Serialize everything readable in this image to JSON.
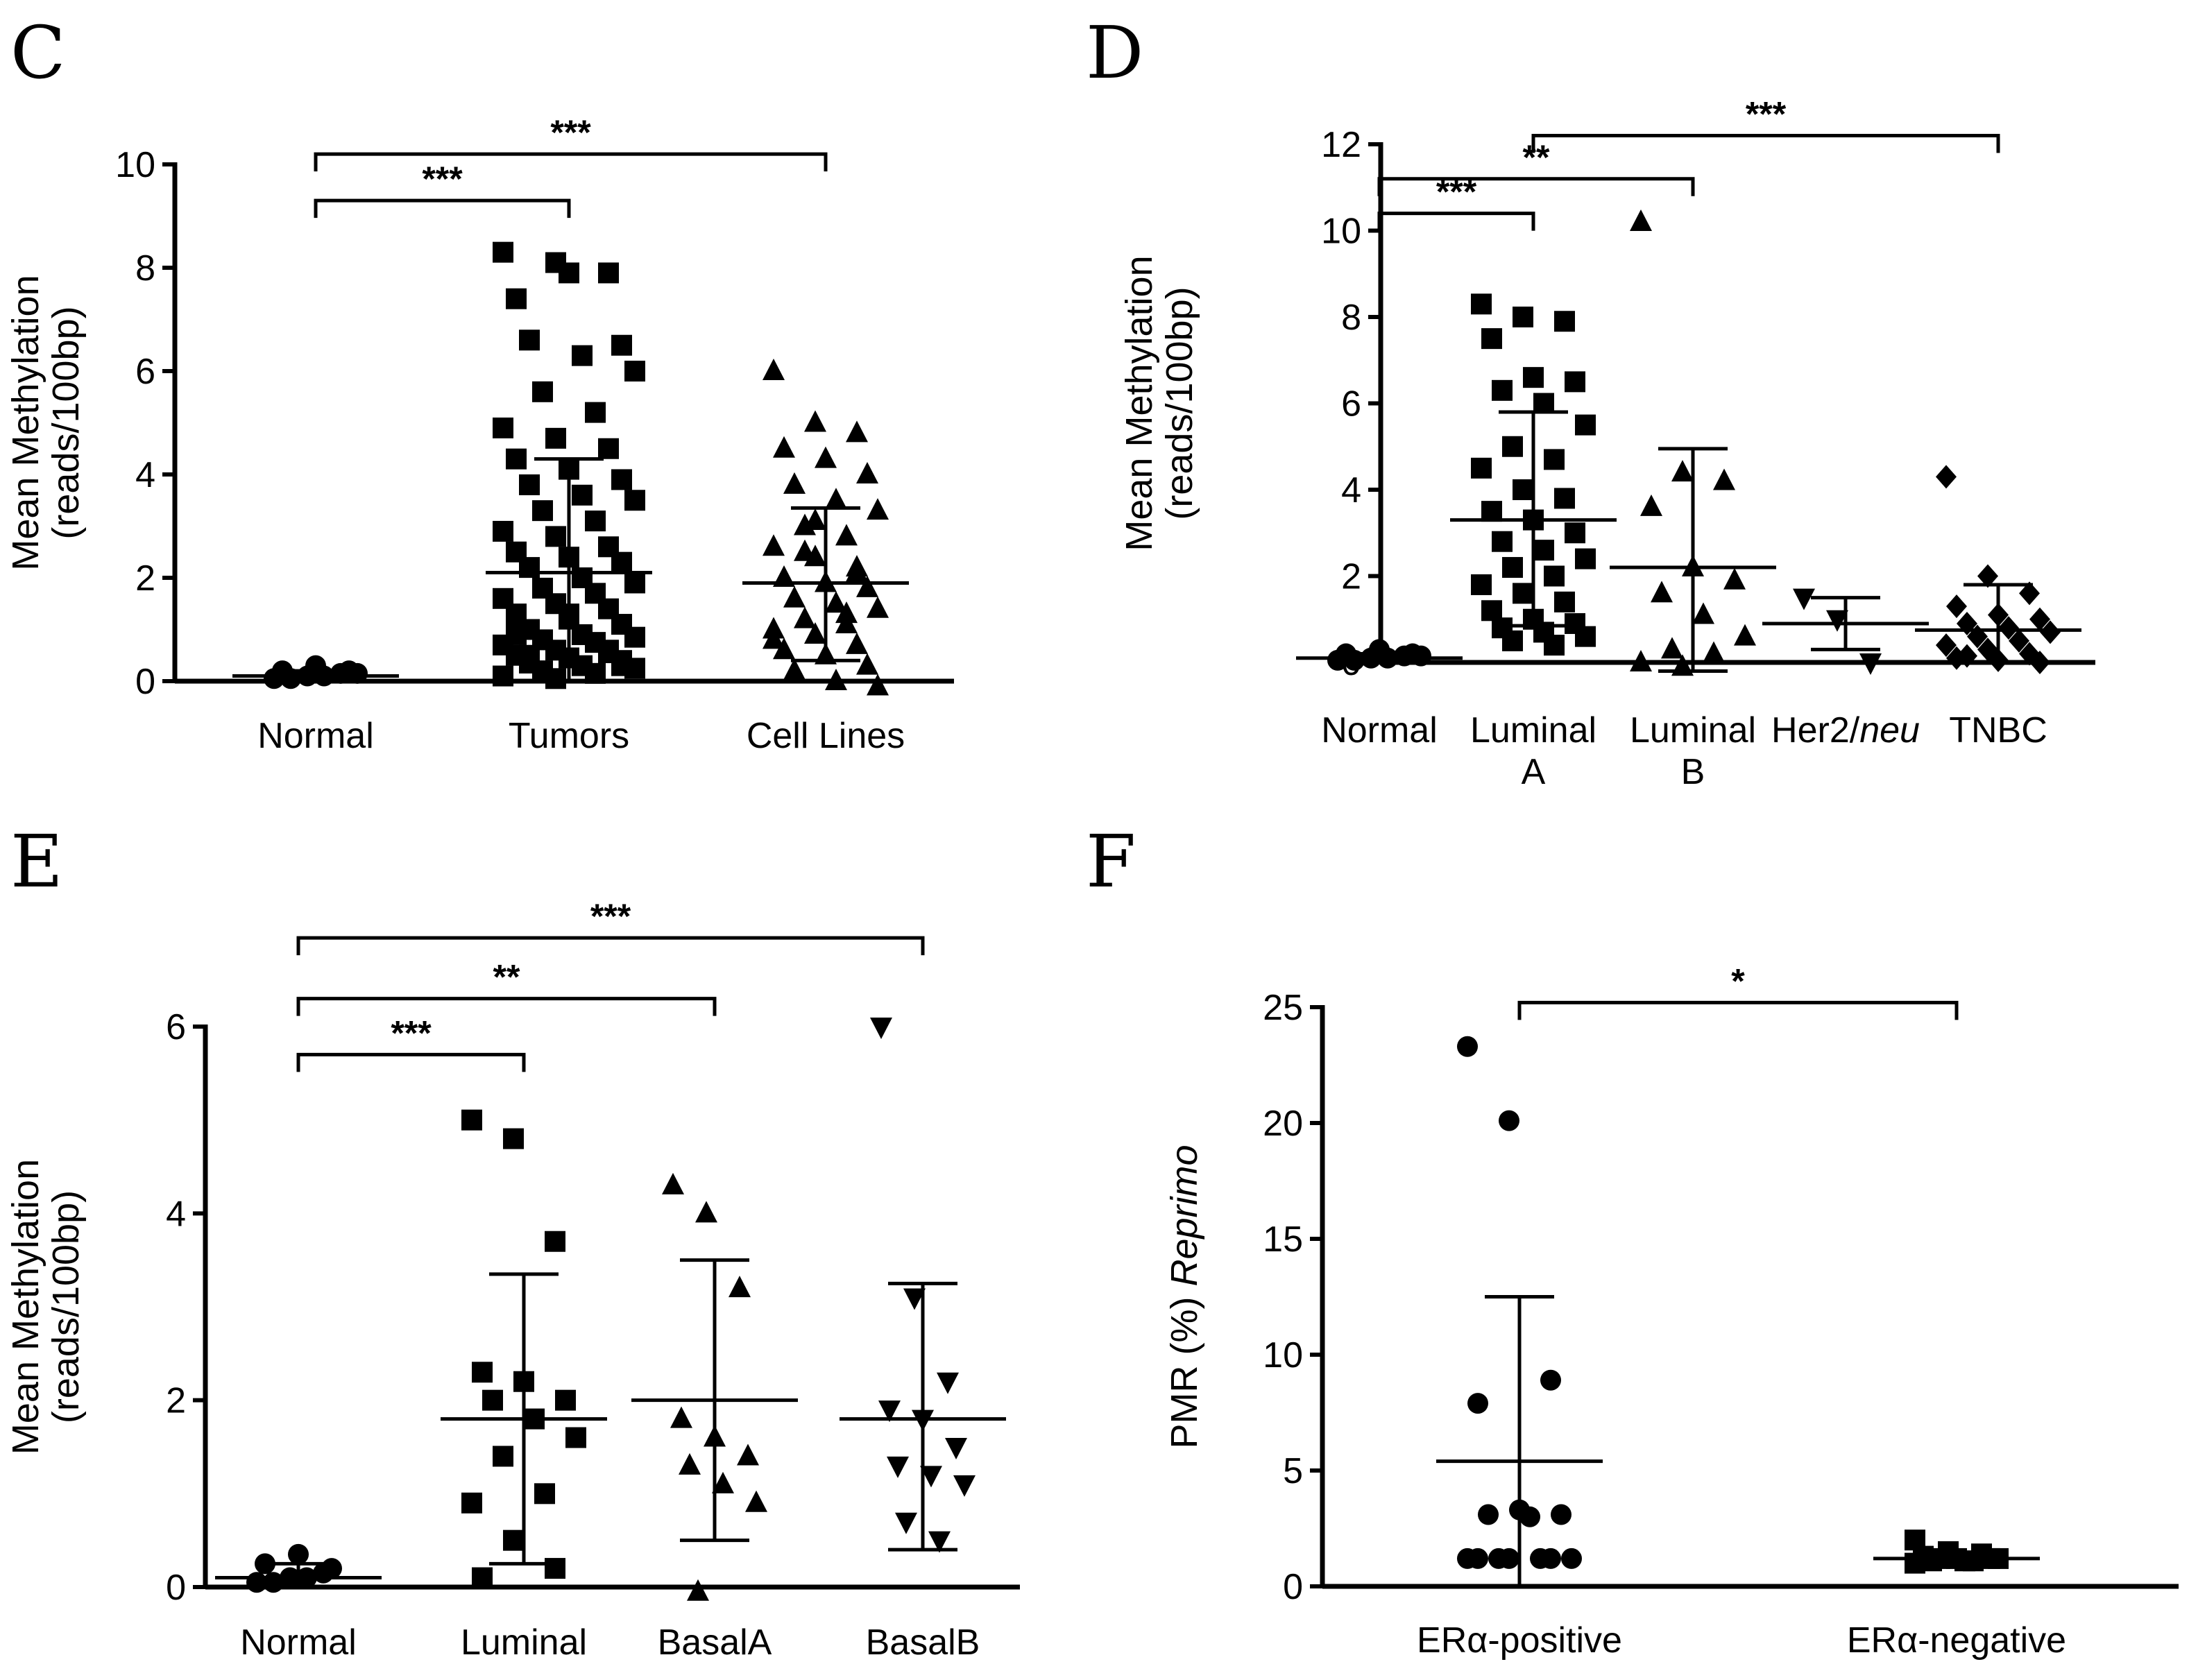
{
  "chart_data": [
    {
      "panel": "C",
      "type": "scatter",
      "ylabel_lines": [
        "Mean Methylation",
        "(reads/100bp)"
      ],
      "ylim": [
        0,
        10
      ],
      "yticks": [
        0,
        2,
        4,
        6,
        8,
        10
      ],
      "categories": [
        {
          "label_lines": [
            "Normal"
          ],
          "marker": "circle",
          "values": [
            0.05,
            0.1,
            0.15,
            0.2,
            0.3,
            0.2,
            0.05,
            0.1,
            0.15
          ],
          "mean": 0.1,
          "err_low": 0.0,
          "err_high": 0.2
        },
        {
          "label_lines": [
            "Tumors"
          ],
          "marker": "square",
          "values": [
            8.3,
            8.1,
            7.9,
            7.4,
            7.9,
            6.5,
            6.6,
            6.3,
            6.0,
            5.6,
            5.2,
            4.9,
            4.7,
            4.5,
            4.3,
            4.1,
            3.9,
            3.8,
            3.6,
            3.5,
            3.3,
            3.1,
            2.9,
            2.8,
            2.6,
            2.5,
            2.4,
            2.3,
            2.2,
            2.0,
            1.9,
            1.8,
            1.7,
            1.6,
            1.5,
            1.4,
            1.3,
            1.2,
            1.1,
            1.0,
            0.9,
            0.85,
            0.8,
            0.75,
            0.7,
            0.6,
            0.55,
            0.5,
            0.45,
            0.4,
            0.35,
            0.3,
            0.25,
            0.2,
            0.15,
            0.1,
            0.05,
            0.6,
            0.9,
            1.3,
            0.3,
            0.5
          ],
          "mean": 2.1,
          "err_low": 0.0,
          "err_high": 4.3
        },
        {
          "label_lines": [
            "Cell Lines"
          ],
          "marker": "triangle",
          "values": [
            6.0,
            5.0,
            4.8,
            4.5,
            4.3,
            4.0,
            3.8,
            3.5,
            3.3,
            3.0,
            2.8,
            2.6,
            2.4,
            2.2,
            2.0,
            1.9,
            1.8,
            1.6,
            1.5,
            1.4,
            1.2,
            1.1,
            1.0,
            0.9,
            0.7,
            0.6,
            0.5,
            0.3,
            0.2,
            0.0,
            -0.1,
            2.5,
            1.3,
            0.8,
            3.1,
            2.1
          ],
          "mean": 1.9,
          "err_low": 0.4,
          "err_high": 3.35
        }
      ],
      "comparisons": [
        {
          "from": 0,
          "to": 1,
          "label": "***",
          "y": 9.3
        },
        {
          "from": 0,
          "to": 2,
          "label": "***",
          "y": 10.2
        }
      ]
    },
    {
      "panel": "D",
      "type": "scatter",
      "ylabel_lines": [
        "Mean Methylation",
        "(reads/100bp)"
      ],
      "ylim": [
        0,
        12
      ],
      "yticks": [
        0,
        2,
        4,
        6,
        8,
        10,
        12
      ],
      "categories": [
        {
          "label_lines": [
            "Normal"
          ],
          "marker": "circle",
          "values": [
            0.05,
            0.1,
            0.15,
            0.2,
            0.3,
            0.2,
            0.05,
            0.1,
            0.15
          ],
          "mean": 0.1,
          "err_low": 0.0,
          "err_high": 0.2
        },
        {
          "label_lines": [
            "Luminal",
            "A"
          ],
          "marker": "square",
          "values": [
            8.3,
            8.0,
            7.9,
            7.5,
            6.6,
            6.5,
            6.3,
            6.0,
            5.5,
            5.0,
            4.7,
            4.5,
            4.0,
            3.8,
            3.5,
            3.3,
            3.0,
            2.8,
            2.6,
            2.4,
            2.2,
            2.0,
            1.8,
            1.6,
            1.4,
            1.2,
            1.0,
            0.9,
            0.8,
            0.7,
            0.6,
            0.5,
            0.4
          ],
          "mean": 3.3,
          "err_low": 0.85,
          "err_high": 5.8
        },
        {
          "label_lines": [
            "Luminal",
            "B"
          ],
          "marker": "triangle",
          "values": [
            10.2,
            4.4,
            4.2,
            3.6,
            2.2,
            1.9,
            1.6,
            1.1,
            0.6,
            0.3,
            0.2,
            0.0,
            -0.1
          ],
          "mean": 2.2,
          "err_low": -0.6,
          "err_high": 4.95
        },
        {
          "label_lines": [
            "Her2/",
            "neu"
          ],
          "marker": "triangle-down",
          "values": [
            1.5,
            1.0,
            0.0
          ],
          "mean": 0.9,
          "err_low": 0.3,
          "err_high": 1.5
        },
        {
          "label_lines": [
            "TNBC"
          ],
          "marker": "diamond",
          "values": [
            4.3,
            2.0,
            1.6,
            1.3,
            1.1,
            1.0,
            0.9,
            0.8,
            0.7,
            0.6,
            0.5,
            0.4,
            0.3,
            0.2,
            0.1,
            0.05,
            0.0,
            0.15
          ],
          "mean": 0.75,
          "err_low": 0.0,
          "err_high": 1.8
        }
      ],
      "comparisons": [
        {
          "from": 0,
          "to": 1,
          "label": "***",
          "y": 10.4
        },
        {
          "from": 0,
          "to": 2,
          "label": "**",
          "y": 11.2
        },
        {
          "from": 1,
          "to": 4,
          "label": "***",
          "y": 12.2
        }
      ]
    },
    {
      "panel": "E",
      "type": "scatter",
      "ylabel_lines": [
        "Mean Methylation",
        "(reads/100bp)"
      ],
      "ylim": [
        0,
        6
      ],
      "yticks": [
        0,
        2,
        4,
        6
      ],
      "categories": [
        {
          "label_lines": [
            "Normal"
          ],
          "marker": "circle",
          "values": [
            0.05,
            0.1,
            0.15,
            0.25,
            0.35,
            0.2,
            0.05,
            0.1
          ],
          "mean": 0.1,
          "err_low": 0.0,
          "err_high": 0.25
        },
        {
          "label_lines": [
            "Luminal"
          ],
          "marker": "square",
          "values": [
            5.0,
            4.8,
            3.7,
            2.3,
            2.2,
            2.0,
            2.0,
            1.8,
            1.6,
            1.4,
            1.0,
            0.9,
            0.5,
            0.2,
            0.1
          ],
          "mean": 1.8,
          "err_low": 0.25,
          "err_high": 3.35
        },
        {
          "label_lines": [
            "BasalA"
          ],
          "marker": "triangle",
          "values": [
            4.3,
            4.0,
            3.2,
            1.8,
            1.6,
            1.4,
            1.3,
            1.1,
            0.9,
            -0.05
          ],
          "mean": 2.0,
          "err_low": 0.5,
          "err_high": 3.5
        },
        {
          "label_lines": [
            "BasalB"
          ],
          "marker": "triangle-down",
          "values": [
            6.0,
            3.1,
            2.2,
            1.9,
            1.8,
            1.5,
            1.3,
            1.2,
            1.1,
            0.7,
            0.5
          ],
          "mean": 1.8,
          "err_low": 0.4,
          "err_high": 3.25
        }
      ],
      "comparisons": [
        {
          "from": 0,
          "to": 1,
          "label": "***",
          "y": 5.7
        },
        {
          "from": 0,
          "to": 2,
          "label": "**",
          "y": 6.3
        },
        {
          "from": 0,
          "to": 3,
          "label": "***",
          "y": 6.95
        }
      ]
    },
    {
      "panel": "F",
      "type": "scatter",
      "ylabel_plain": "PMR (%) ",
      "ylabel_italic": "Reprimo",
      "ylim": [
        0,
        25
      ],
      "yticks": [
        0,
        5,
        10,
        15,
        20,
        25
      ],
      "categories": [
        {
          "label_prefix": "ER",
          "label_greek": "α",
          "label_suffix": "-positive",
          "marker": "circle",
          "values": [
            23.3,
            20.1,
            8.9,
            7.9,
            3.3,
            3.1,
            3.1,
            3.0,
            1.2,
            1.2,
            1.2,
            1.2,
            1.2,
            1.2,
            1.2
          ],
          "mean": 5.4,
          "err_low": 0.0,
          "err_high": 12.5
        },
        {
          "label_prefix": "ER",
          "label_greek": "α",
          "label_suffix": "-negative",
          "marker": "square",
          "values": [
            2.0,
            1.5,
            1.4,
            1.3,
            1.2,
            1.2,
            1.1,
            1.1,
            1.2,
            1.2,
            1.1,
            1.0
          ],
          "mean": 1.2,
          "err_low": 1.0,
          "err_high": 1.4
        }
      ],
      "comparisons": [
        {
          "from": 0,
          "to": 1,
          "label": "*",
          "y": 25.2
        }
      ]
    }
  ]
}
